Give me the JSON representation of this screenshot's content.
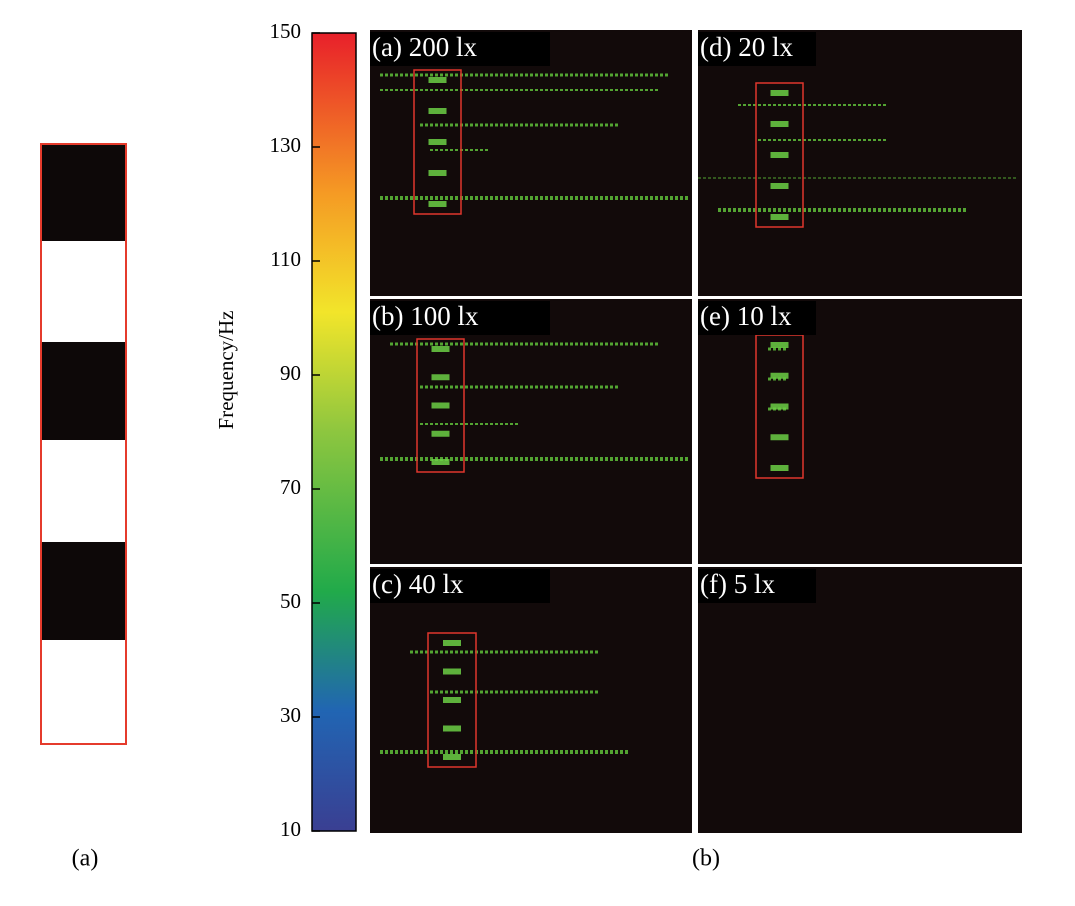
{
  "figure": {
    "captions": [
      "(a)",
      "(b)"
    ],
    "colorbar": {
      "label": "Frequency/Hz",
      "lim": [
        10,
        150
      ],
      "ticks": [
        10,
        30,
        50,
        70,
        90,
        110,
        130,
        150
      ]
    },
    "panels": [
      {
        "label": "(a) 200 lx"
      },
      {
        "label": "(b) 100 lx"
      },
      {
        "label": "(c) 40 lx"
      },
      {
        "label": "(d) 20 lx"
      },
      {
        "label": "(e) 10 lx"
      },
      {
        "label": "(f) 5 lx"
      }
    ]
  }
}
